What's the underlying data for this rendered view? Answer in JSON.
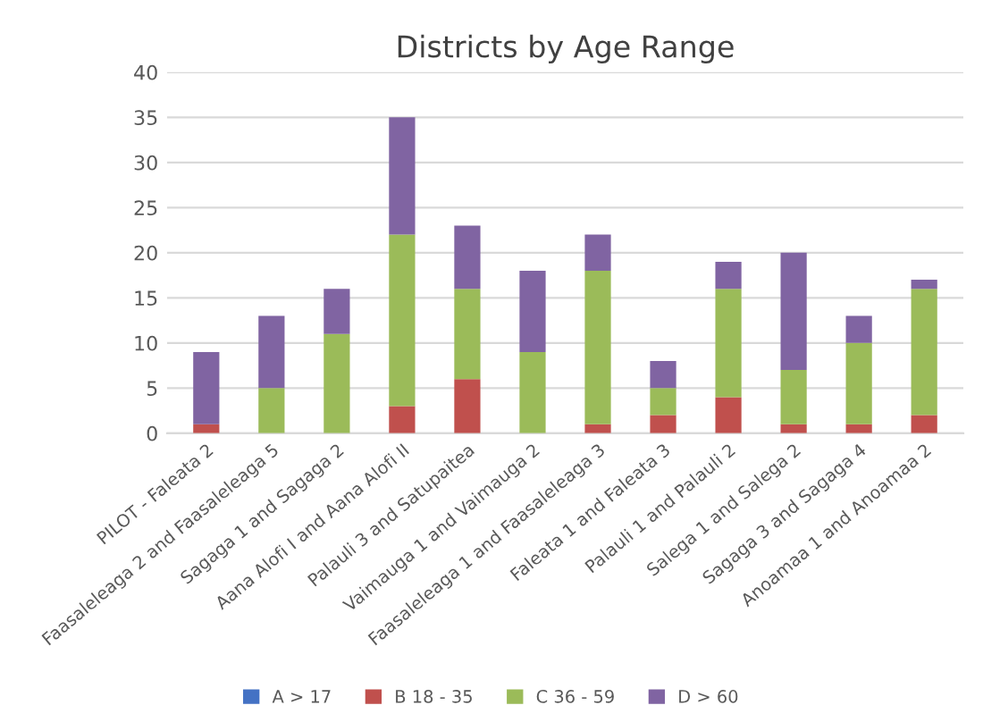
{
  "chart_data": {
    "type": "bar",
    "title": "Districts by Age Range",
    "stacked": true,
    "categories": [
      "PILOT - Faleata 2",
      "Faasaleleaga 2 and Faasaleleaga 5",
      "Sagaga 1 and Sagaga 2",
      "Aana Alofi I and Aana Alofi II",
      "Palauli 3 and Satupaitea",
      "Vaimauga 1 and Vaimauga 2",
      "Faasaleleaga 1 and Faasaleleaga 3",
      "Faleata 1 and Faleata 3",
      "Palauli 1 and Palauli 2",
      "Salega 1 and Salega 2",
      "Sagaga 3 and Sagaga 4",
      "Anoamaa 1 and Anoamaa 2"
    ],
    "series": [
      {
        "name": "A > 17",
        "color": "#4472c4",
        "values": [
          0,
          0,
          0,
          0,
          0,
          0,
          0,
          0,
          0,
          0,
          0,
          0
        ]
      },
      {
        "name": "B 18 - 35",
        "color": "#c0504d",
        "values": [
          1,
          0,
          0,
          3,
          6,
          0,
          1,
          2,
          4,
          1,
          1,
          2
        ]
      },
      {
        "name": "C 36 - 59",
        "color": "#9bbb59",
        "values": [
          0,
          5,
          11,
          19,
          10,
          9,
          17,
          3,
          12,
          6,
          9,
          14
        ]
      },
      {
        "name": "D > 60",
        "color": "#8064a2",
        "values": [
          8,
          8,
          5,
          13,
          7,
          9,
          4,
          3,
          3,
          13,
          3,
          1
        ]
      }
    ],
    "ylim": [
      0,
      40
    ],
    "yticks": [
      0,
      5,
      10,
      15,
      20,
      25,
      30,
      35,
      40
    ],
    "grid": "y",
    "legend": "bottom"
  }
}
